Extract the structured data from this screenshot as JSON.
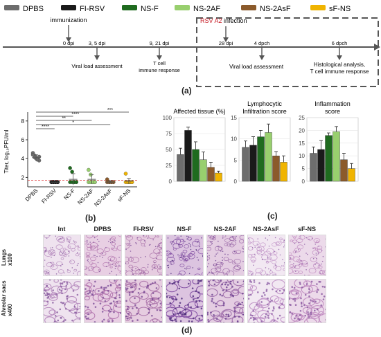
{
  "legend": [
    {
      "label": "DPBS",
      "color": "#6d6d6d"
    },
    {
      "label": "FI-RSV",
      "color": "#1a1a1a"
    },
    {
      "label": "NS-F",
      "color": "#1f6b1f"
    },
    {
      "label": "NS-2AF",
      "color": "#98cf6e"
    },
    {
      "label": "NS-2AsF",
      "color": "#8b5a2b"
    },
    {
      "label": "sF-NS",
      "color": "#f0b400"
    }
  ],
  "timeline": {
    "immunization": "immunization",
    "dpi0": "0 dpi",
    "dpi35": "3, 5 dpi",
    "dpi35_note": "Viral load assessment",
    "dpi921": "9, 21 dpi",
    "dpi921_note_1": "T cell",
    "dpi921_note_2": "immune response",
    "infection_virus": "RSV A2",
    "infection_text": " infection",
    "dpi28": "28 dpi",
    "dpch4": "4 dpch",
    "dpch4_note": "Viral load assessment",
    "dpch6": "6 dpch",
    "dpch6_note_1": "Histological analysis,",
    "dpch6_note_2": "T cell immune response"
  },
  "labels": {
    "a": "(a)",
    "b": "(b)",
    "c": "(c)",
    "d": "(d)"
  },
  "chart_b": {
    "ylabel": "Titer, log₁₀PFU/ml",
    "yticks": [
      2,
      4,
      6,
      8
    ],
    "categories": [
      "DPBS",
      "FI-RSV",
      "NS-F",
      "NS-2AF",
      "NS-2AsF",
      "sF-NS"
    ],
    "stars": [
      "****",
      "*",
      "**",
      "****",
      "***"
    ]
  },
  "chart_data": [
    {
      "type": "scatter",
      "ylim": [
        1,
        8.5
      ],
      "categories": [
        "DPBS",
        "FI-RSV",
        "NS-F",
        "NS-2AF",
        "NS-2AsF",
        "sF-NS"
      ],
      "points": [
        [
          4.6,
          4.3,
          4.0,
          3.8,
          4.4,
          4.1,
          3.9,
          4.2
        ],
        [
          1.5,
          1.5,
          1.5,
          1.5,
          1.5,
          1.5,
          1.5,
          1.5
        ],
        [
          3.0,
          2.6,
          1.5,
          1.5,
          1.5,
          1.5,
          1.5,
          1.5
        ],
        [
          2.8,
          2.3,
          1.5,
          1.5,
          1.5,
          1.5,
          1.5,
          1.5
        ],
        [
          1.8,
          1.5,
          1.5,
          1.5,
          1.5,
          1.5,
          1.5,
          1.5
        ],
        [
          2.4,
          1.5,
          1.5,
          1.5,
          1.5,
          1.5,
          1.5,
          1.5
        ]
      ],
      "means": [
        4.1,
        1.5,
        1.8,
        1.8,
        1.5,
        1.6
      ],
      "errors": [
        0.3,
        0,
        0.6,
        0.5,
        0.1,
        0.3
      ],
      "threshold": 1.7
    },
    {
      "type": "bar",
      "title": "Affected tissue (%)",
      "categories": [
        "DPBS",
        "FI-RSV",
        "NS-F",
        "NS-2AF",
        "NS-2AsF",
        "sF-NS"
      ],
      "values": [
        42,
        80,
        50,
        34,
        22,
        13
      ],
      "errors": [
        10,
        5,
        12,
        12,
        8,
        3
      ],
      "ylim": [
        0,
        100
      ],
      "yticks": [
        0,
        25,
        50,
        75,
        100
      ]
    },
    {
      "type": "bar",
      "title": "Lymphocytic\nInfiltration score",
      "categories": [
        "DPBS",
        "FI-RSV",
        "NS-F",
        "NS-2AF",
        "NS-2AsF",
        "sF-NS"
      ],
      "values": [
        8,
        8.5,
        10.5,
        11.5,
        6,
        4.5
      ],
      "errors": [
        1.5,
        2,
        1.5,
        2,
        1,
        1.5
      ],
      "ylim": [
        0,
        15
      ],
      "yticks": [
        0,
        5,
        10,
        15
      ]
    },
    {
      "type": "bar",
      "title": "Inflammation\nscore",
      "categories": [
        "DPBS",
        "FI-RSV",
        "NS-F",
        "NS-2AF",
        "NS-2AsF",
        "sF-NS"
      ],
      "values": [
        11,
        12.5,
        18,
        19.5,
        8.5,
        5
      ],
      "errors": [
        2.5,
        3.5,
        1,
        2,
        2.5,
        2
      ],
      "ylim": [
        0,
        25
      ],
      "yticks": [
        0,
        5,
        10,
        15,
        20,
        25
      ]
    }
  ],
  "histology": {
    "columns": [
      "Int",
      "DPBS",
      "FI-RSV",
      "NS-F",
      "NS-2AF",
      "NS-2AsF",
      "sF-NS"
    ],
    "row1_line1": "Lungs",
    "row1_line2": "x100",
    "row2_line1": "Alveolar sacs",
    "row2_line2": "x400",
    "tones": [
      {
        "bg": "#efe3ef",
        "fg": "#b98fc0",
        "dot": "#8a5ca0"
      },
      {
        "bg": "#e8cfe3",
        "fg": "#b77db3",
        "dot": "#7d4f99"
      },
      {
        "bg": "#e6cce0",
        "fg": "#b07aae",
        "dot": "#7a4a95"
      },
      {
        "bg": "#dcc4e0",
        "fg": "#8a58a8",
        "dot": "#4e2d7a"
      },
      {
        "bg": "#e4cde2",
        "fg": "#a272ad",
        "dot": "#6c4090"
      },
      {
        "bg": "#f2e8f2",
        "fg": "#c59acb",
        "dot": "#8e60a6"
      },
      {
        "bg": "#ecdaea",
        "fg": "#c28fc2",
        "dot": "#8a58a0"
      }
    ]
  }
}
